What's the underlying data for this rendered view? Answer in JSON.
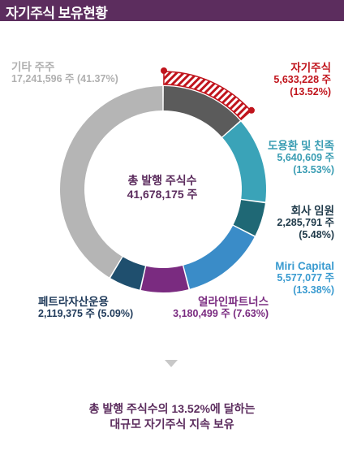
{
  "header": {
    "title": "자기주식 보유현황"
  },
  "chart_data": {
    "type": "pie",
    "center_title": "총 발행 주식수",
    "center_value": "41,678,175 주",
    "slices": [
      {
        "name": "자기주식",
        "shares": 5633228,
        "shares_text": "5,633,228 주",
        "percent": 13.52,
        "percent_text": "(13.52%)",
        "color": "#5b5b5b",
        "label_color": "#c0141c",
        "highlighted": true
      },
      {
        "name": "도용환 및 친족",
        "shares": 5640609,
        "shares_text": "5,640,609 주",
        "percent": 13.53,
        "percent_text": "(13.53%)",
        "color": "#3aa3b8",
        "label_color": "#3a9db3"
      },
      {
        "name": "회사 임원",
        "shares": 2285791,
        "shares_text": "2,285,791 주",
        "percent": 5.48,
        "percent_text": "(5.48%)",
        "color": "#1f6875",
        "label_color": "#1f3a4a"
      },
      {
        "name": "Miri Capital",
        "shares": 5577077,
        "shares_text": "5,577,077 주",
        "percent": 13.38,
        "percent_text": "(13.38%)",
        "color": "#3a8cc8",
        "label_color": "#3a9bd0"
      },
      {
        "name": "얼라인파트너스",
        "shares": 3180499,
        "shares_text": "3,180,499 주 (7.63%)",
        "percent": 7.63,
        "color": "#7a2b80",
        "label_color": "#7a2b80"
      },
      {
        "name": "페트라자산운용",
        "shares": 2119375,
        "shares_text": "2,119,375 주 (5.09%)",
        "percent": 5.09,
        "color": "#1f4f6e",
        "label_color": "#1f3a5a"
      },
      {
        "name": "기타 주주",
        "shares": 17241596,
        "shares_text": "17,241,596 주 (41.37%)",
        "percent": 41.37,
        "color": "#b5b5b5",
        "label_color": "#b0b0b0"
      }
    ]
  },
  "summary": {
    "line1": "총 발행 주식수의 13.52%에 달하는",
    "line2": "대규모 자기주식 지속 보유"
  }
}
